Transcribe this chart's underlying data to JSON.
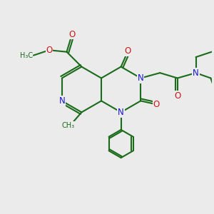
{
  "bg_color": "#ebebeb",
  "bond_color": "#1a6b1a",
  "n_color": "#1818cc",
  "o_color": "#cc1818",
  "lw": 1.5,
  "figsize": [
    3.0,
    3.0
  ],
  "dpi": 100,
  "xlim": [
    -1,
    11
  ],
  "ylim": [
    -1,
    11
  ]
}
